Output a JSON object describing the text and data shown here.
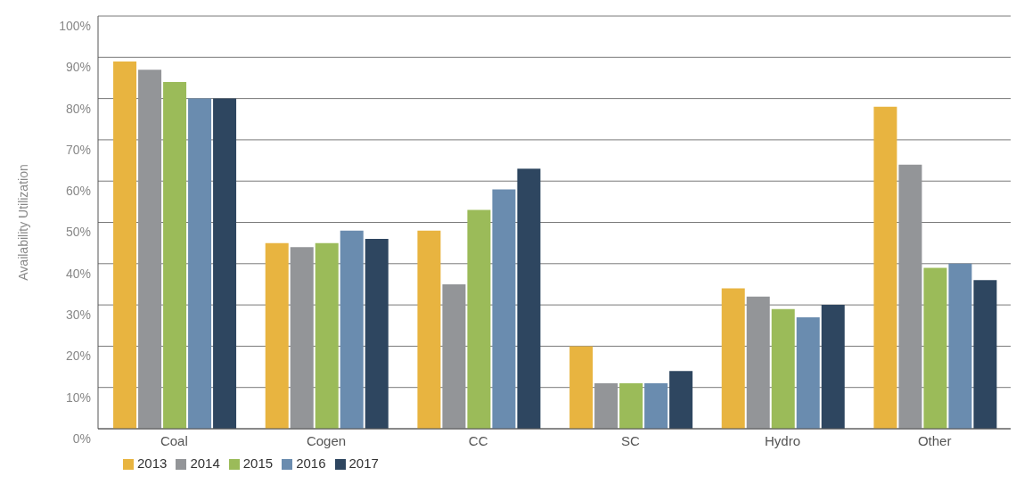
{
  "chart_data": {
    "type": "bar",
    "ylabel": "Availability Utilization",
    "categories": [
      "Coal",
      "Cogen",
      "CC",
      "SC",
      "Hydro",
      "Other"
    ],
    "series": [
      {
        "name": "2013",
        "color": "#e8b440",
        "values": [
          89,
          45,
          48,
          20,
          34,
          78
        ]
      },
      {
        "name": "2014",
        "color": "#939598",
        "values": [
          87,
          44,
          35,
          11,
          32,
          64
        ]
      },
      {
        "name": "2015",
        "color": "#9bbb59",
        "values": [
          84,
          45,
          53,
          11,
          29,
          39
        ]
      },
      {
        "name": "2016",
        "color": "#6a8caf",
        "values": [
          80,
          48,
          58,
          11,
          27,
          40
        ]
      },
      {
        "name": "2017",
        "color": "#2e4660",
        "values": [
          80,
          46,
          63,
          14,
          30,
          36
        ]
      }
    ],
    "ylim": [
      0,
      100
    ],
    "yticks": [
      {
        "value": 0,
        "label": "0%"
      },
      {
        "value": 10,
        "label": "10%"
      },
      {
        "value": 20,
        "label": "20%"
      },
      {
        "value": 30,
        "label": "30%"
      },
      {
        "value": 40,
        "label": "40%"
      },
      {
        "value": 50,
        "label": "50%"
      },
      {
        "value": 60,
        "label": "60%"
      },
      {
        "value": 70,
        "label": "70%"
      },
      {
        "value": 80,
        "label": "80%"
      },
      {
        "value": 90,
        "label": "90%"
      },
      {
        "value": 100,
        "label": "100%"
      }
    ],
    "grid": "y",
    "legend": "bottom left"
  }
}
